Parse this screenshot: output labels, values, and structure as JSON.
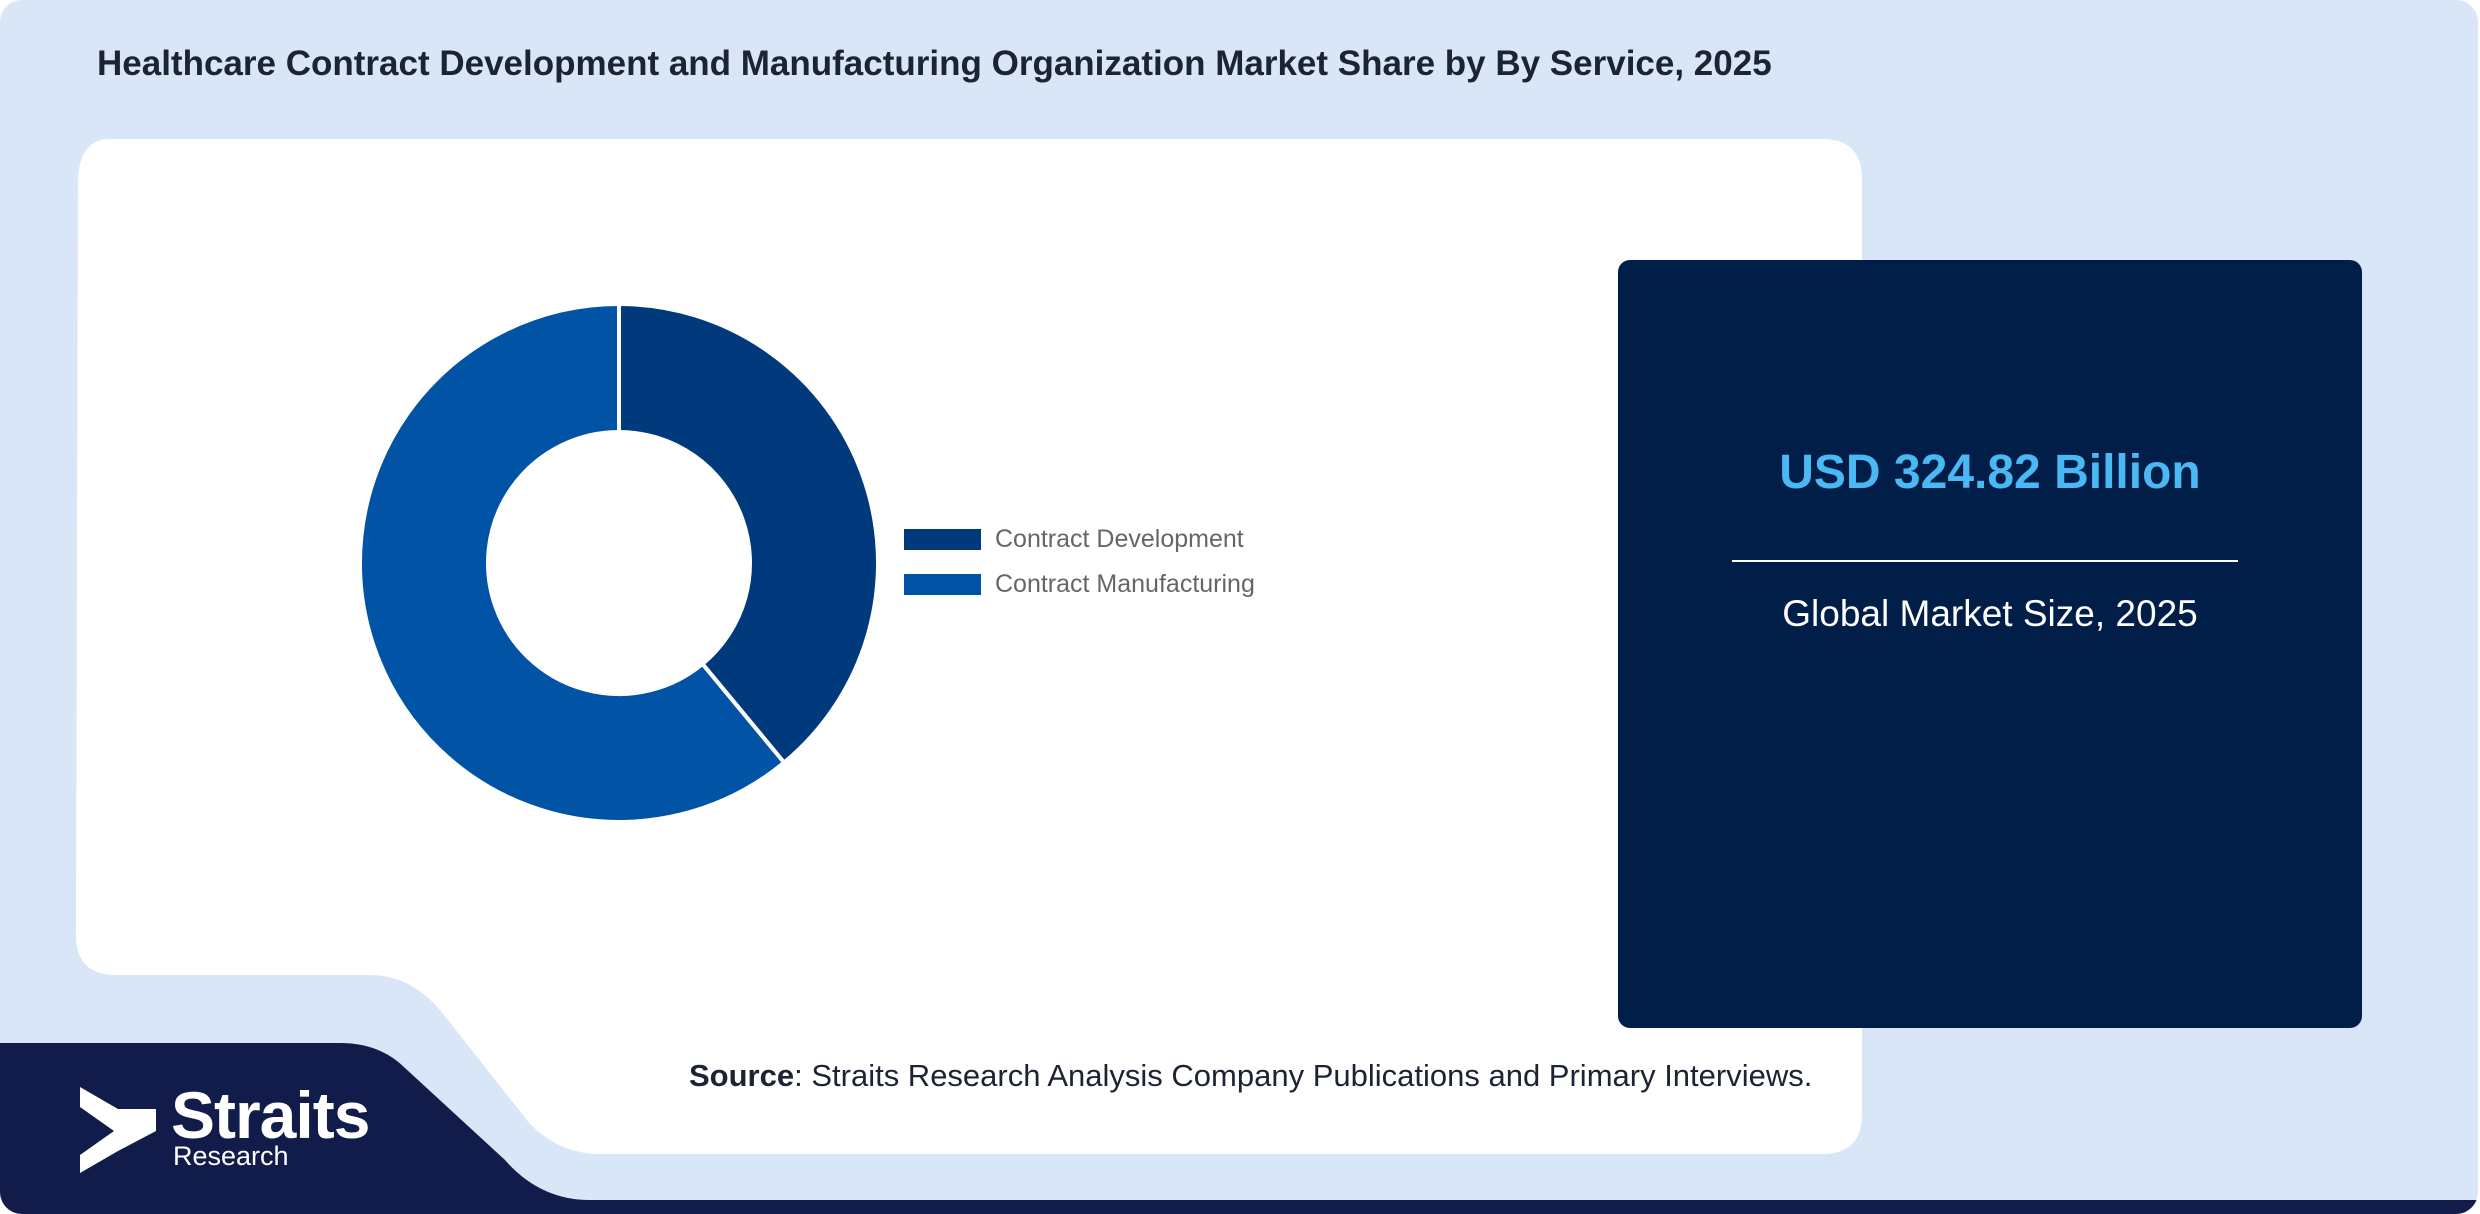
{
  "title": "Healthcare Contract Development and Manufacturing Organization Market Share by By Service, 2025",
  "chart_data": {
    "type": "pie",
    "variant": "donut",
    "categories": [
      "Contract Development",
      "Contract Manufacturing"
    ],
    "values": [
      39,
      61
    ],
    "colors": [
      "#013a7c",
      "#0153a5"
    ],
    "legend_position": "right"
  },
  "market_card": {
    "value": "USD 324.82 Billion",
    "label": "Global Market Size, 2025"
  },
  "source": {
    "label": "Source",
    "text": ": Straits Research Analysis Company Publications and Primary Interviews."
  },
  "logo": {
    "name": "Straits",
    "sub": "Research"
  },
  "colors": {
    "background": "#d9e6f8",
    "panel": "#ffffff",
    "card": "#011e48",
    "accent_value": "#4ab8f3",
    "footer_band": "#121c4a"
  }
}
